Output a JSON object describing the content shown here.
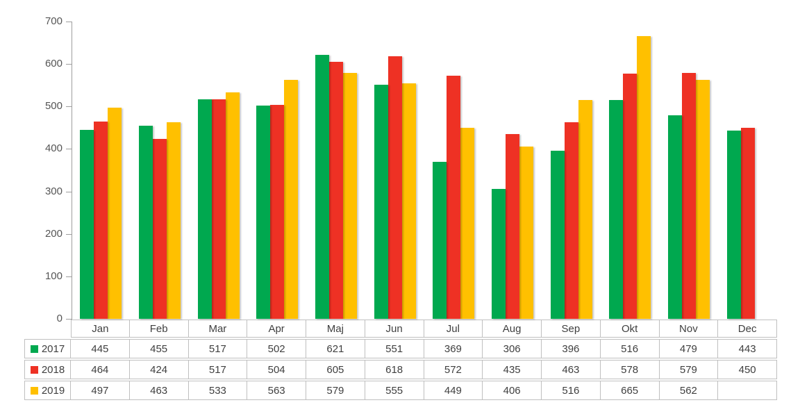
{
  "chart_data": {
    "type": "bar",
    "title": "",
    "xlabel": "",
    "ylabel": "",
    "categories": [
      "Jan",
      "Feb",
      "Mar",
      "Apr",
      "Maj",
      "Jun",
      "Jul",
      "Aug",
      "Sep",
      "Okt",
      "Nov",
      "Dec"
    ],
    "series": [
      {
        "name": "2017",
        "color": "#00a84f",
        "values": [
          445,
          455,
          517,
          502,
          621,
          551,
          369,
          306,
          396,
          516,
          479,
          443
        ]
      },
      {
        "name": "2018",
        "color": "#ee3124",
        "values": [
          464,
          424,
          517,
          504,
          605,
          618,
          572,
          435,
          463,
          578,
          579,
          450
        ]
      },
      {
        "name": "2019",
        "color": "#ffc000",
        "values": [
          497,
          463,
          533,
          563,
          579,
          555,
          449,
          406,
          516,
          665,
          562,
          null
        ]
      }
    ],
    "ylim": [
      0,
      700
    ],
    "yticks": [
      "700",
      "600",
      "500",
      "400",
      "300",
      "200",
      "100",
      "0"
    ],
    "grid": false,
    "legend_position": "table-left",
    "colors": {
      "axis_line": "#9d9d9d",
      "tick_label": "#555555",
      "table_border": "#bfbfbf",
      "table_text": "#3f3f3f",
      "background": "#ffffff"
    }
  }
}
